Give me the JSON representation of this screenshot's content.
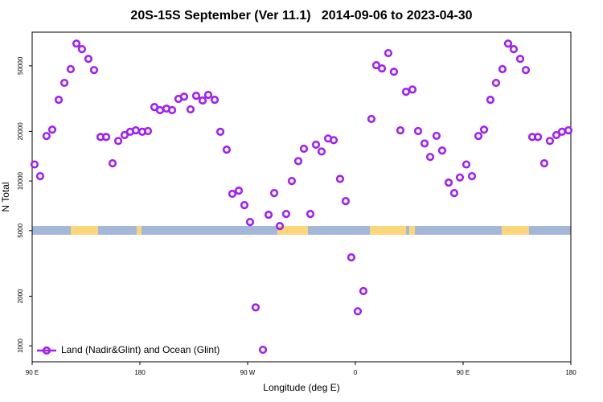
{
  "chart_data": {
    "type": "scatter",
    "title": "20S-15S September (Ver 11.1)   2014-09-06 to 2023-04-30",
    "x_label": "Longitude (deg E)",
    "y_label": "N Total",
    "log_y": true,
    "grid": false,
    "legend": "bottomleft",
    "xlim": [
      90,
      540
    ],
    "xticks": [
      {
        "value": 90,
        "label": "90 E"
      },
      {
        "value": 180,
        "label": "180"
      },
      {
        "value": 270,
        "label": "90 W"
      },
      {
        "value": 360,
        "label": "0"
      },
      {
        "value": 450,
        "label": "90 E"
      },
      {
        "value": 540,
        "label": "180"
      }
    ],
    "ylim": [
      800,
      80000
    ],
    "yticks": [
      1000,
      2000,
      5000,
      10000,
      20000,
      50000
    ],
    "series": [
      {
        "name": "Land (Nadir&Glint) and Ocean (Glint)",
        "color": "#a020f0",
        "x": [
          92,
          96.7,
          102,
          106.8,
          112.2,
          116.9,
          122.2,
          127,
          131.6,
          137,
          141.7,
          147.1,
          151.8,
          157.2,
          161.9,
          167.2,
          171.9,
          176.6,
          182,
          186.7,
          192.1,
          196.8,
          202.2,
          206.9,
          212.2,
          216.9,
          222.3,
          227,
          232.4,
          237.1,
          242.5,
          247.2,
          252.5,
          257.2,
          262.6,
          267.3,
          272,
          276.7,
          282.8,
          287.5,
          292.2,
          296.9,
          302.2,
          306.9,
          312.3,
          317,
          322.4,
          327.1,
          331.8,
          337.2,
          341.9,
          347.2,
          351.9,
          356.6,
          362,
          366.7,
          373.4,
          377.5,
          382.2,
          387.5,
          392.2,
          397.6,
          402.3,
          407.7,
          412.4,
          417.8,
          422.5,
          427.8,
          432.5,
          437.9,
          442.6,
          447.3,
          452.7,
          457.4,
          462.8,
          467.5,
          472.8,
          477.5,
          482.9,
          487.6,
          492.3,
          497.7,
          502.4,
          507.8,
          512.5,
          517.8,
          522.5,
          527.9,
          532.6,
          538
        ],
        "values": [
          12600,
          10700,
          18750,
          20500,
          31100,
          39400,
          47700,
          68200,
          63100,
          55100,
          47100,
          18500,
          18500,
          12800,
          17500,
          19000,
          19900,
          20300,
          19900,
          20100,
          28100,
          26900,
          27500,
          26900,
          31500,
          32500,
          27200,
          32900,
          30800,
          33300,
          31100,
          19900,
          15500,
          8360,
          8740,
          7140,
          5640,
          1710,
          946,
          6240,
          8450,
          5330,
          6310,
          10000,
          13200,
          15700,
          6310,
          16600,
          15100,
          18100,
          17700,
          10300,
          7550,
          3440,
          1620,
          2150,
          23800,
          50400,
          48200,
          59700,
          46000,
          20300,
          34800,
          35900,
          20100,
          16900,
          14000,
          18800,
          15300,
          9780,
          8450,
          10500,
          12600,
          10700,
          18750,
          20500,
          31100,
          39400,
          47700,
          68200,
          63100,
          55100,
          47100,
          18500,
          18500,
          12800,
          17500,
          19000,
          19900,
          20300
        ]
      }
    ]
  }
}
